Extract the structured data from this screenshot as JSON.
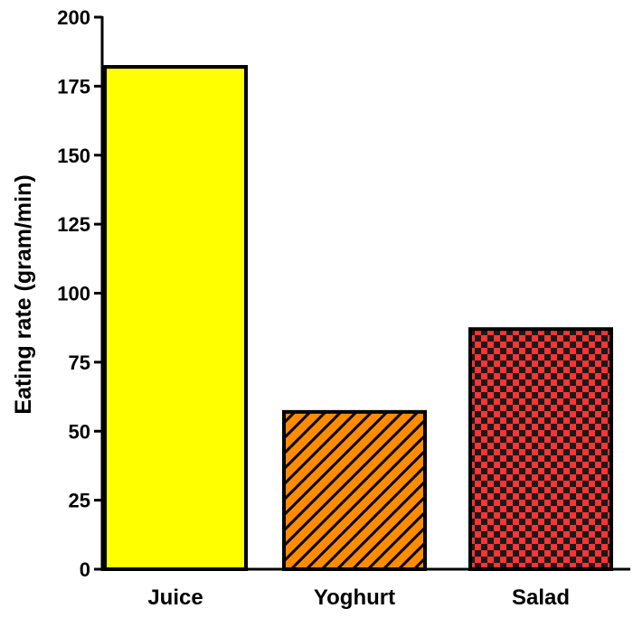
{
  "chart_data": {
    "type": "bar",
    "title": "",
    "xlabel": "",
    "ylabel": "Eating rate (gram/min)",
    "categories": [
      "Juice",
      "Yoghurt",
      "Salad"
    ],
    "values": [
      182,
      57,
      87
    ],
    "ylim": [
      0,
      200
    ],
    "yticks": [
      0,
      25,
      50,
      75,
      100,
      125,
      150,
      175,
      200
    ],
    "ytick_labels": [
      "0",
      "25",
      "50",
      "75",
      "100",
      "125",
      "150",
      "175",
      "200"
    ],
    "bar_styles": [
      {
        "fill": "#ffff00",
        "pattern": "solid"
      },
      {
        "fill": "#ff8c00",
        "pattern": "diagonal-hatch"
      },
      {
        "fill": "#ff3333",
        "pattern": "checkerboard"
      }
    ],
    "edge_color": "#000000",
    "grid": false,
    "legend": "none"
  }
}
